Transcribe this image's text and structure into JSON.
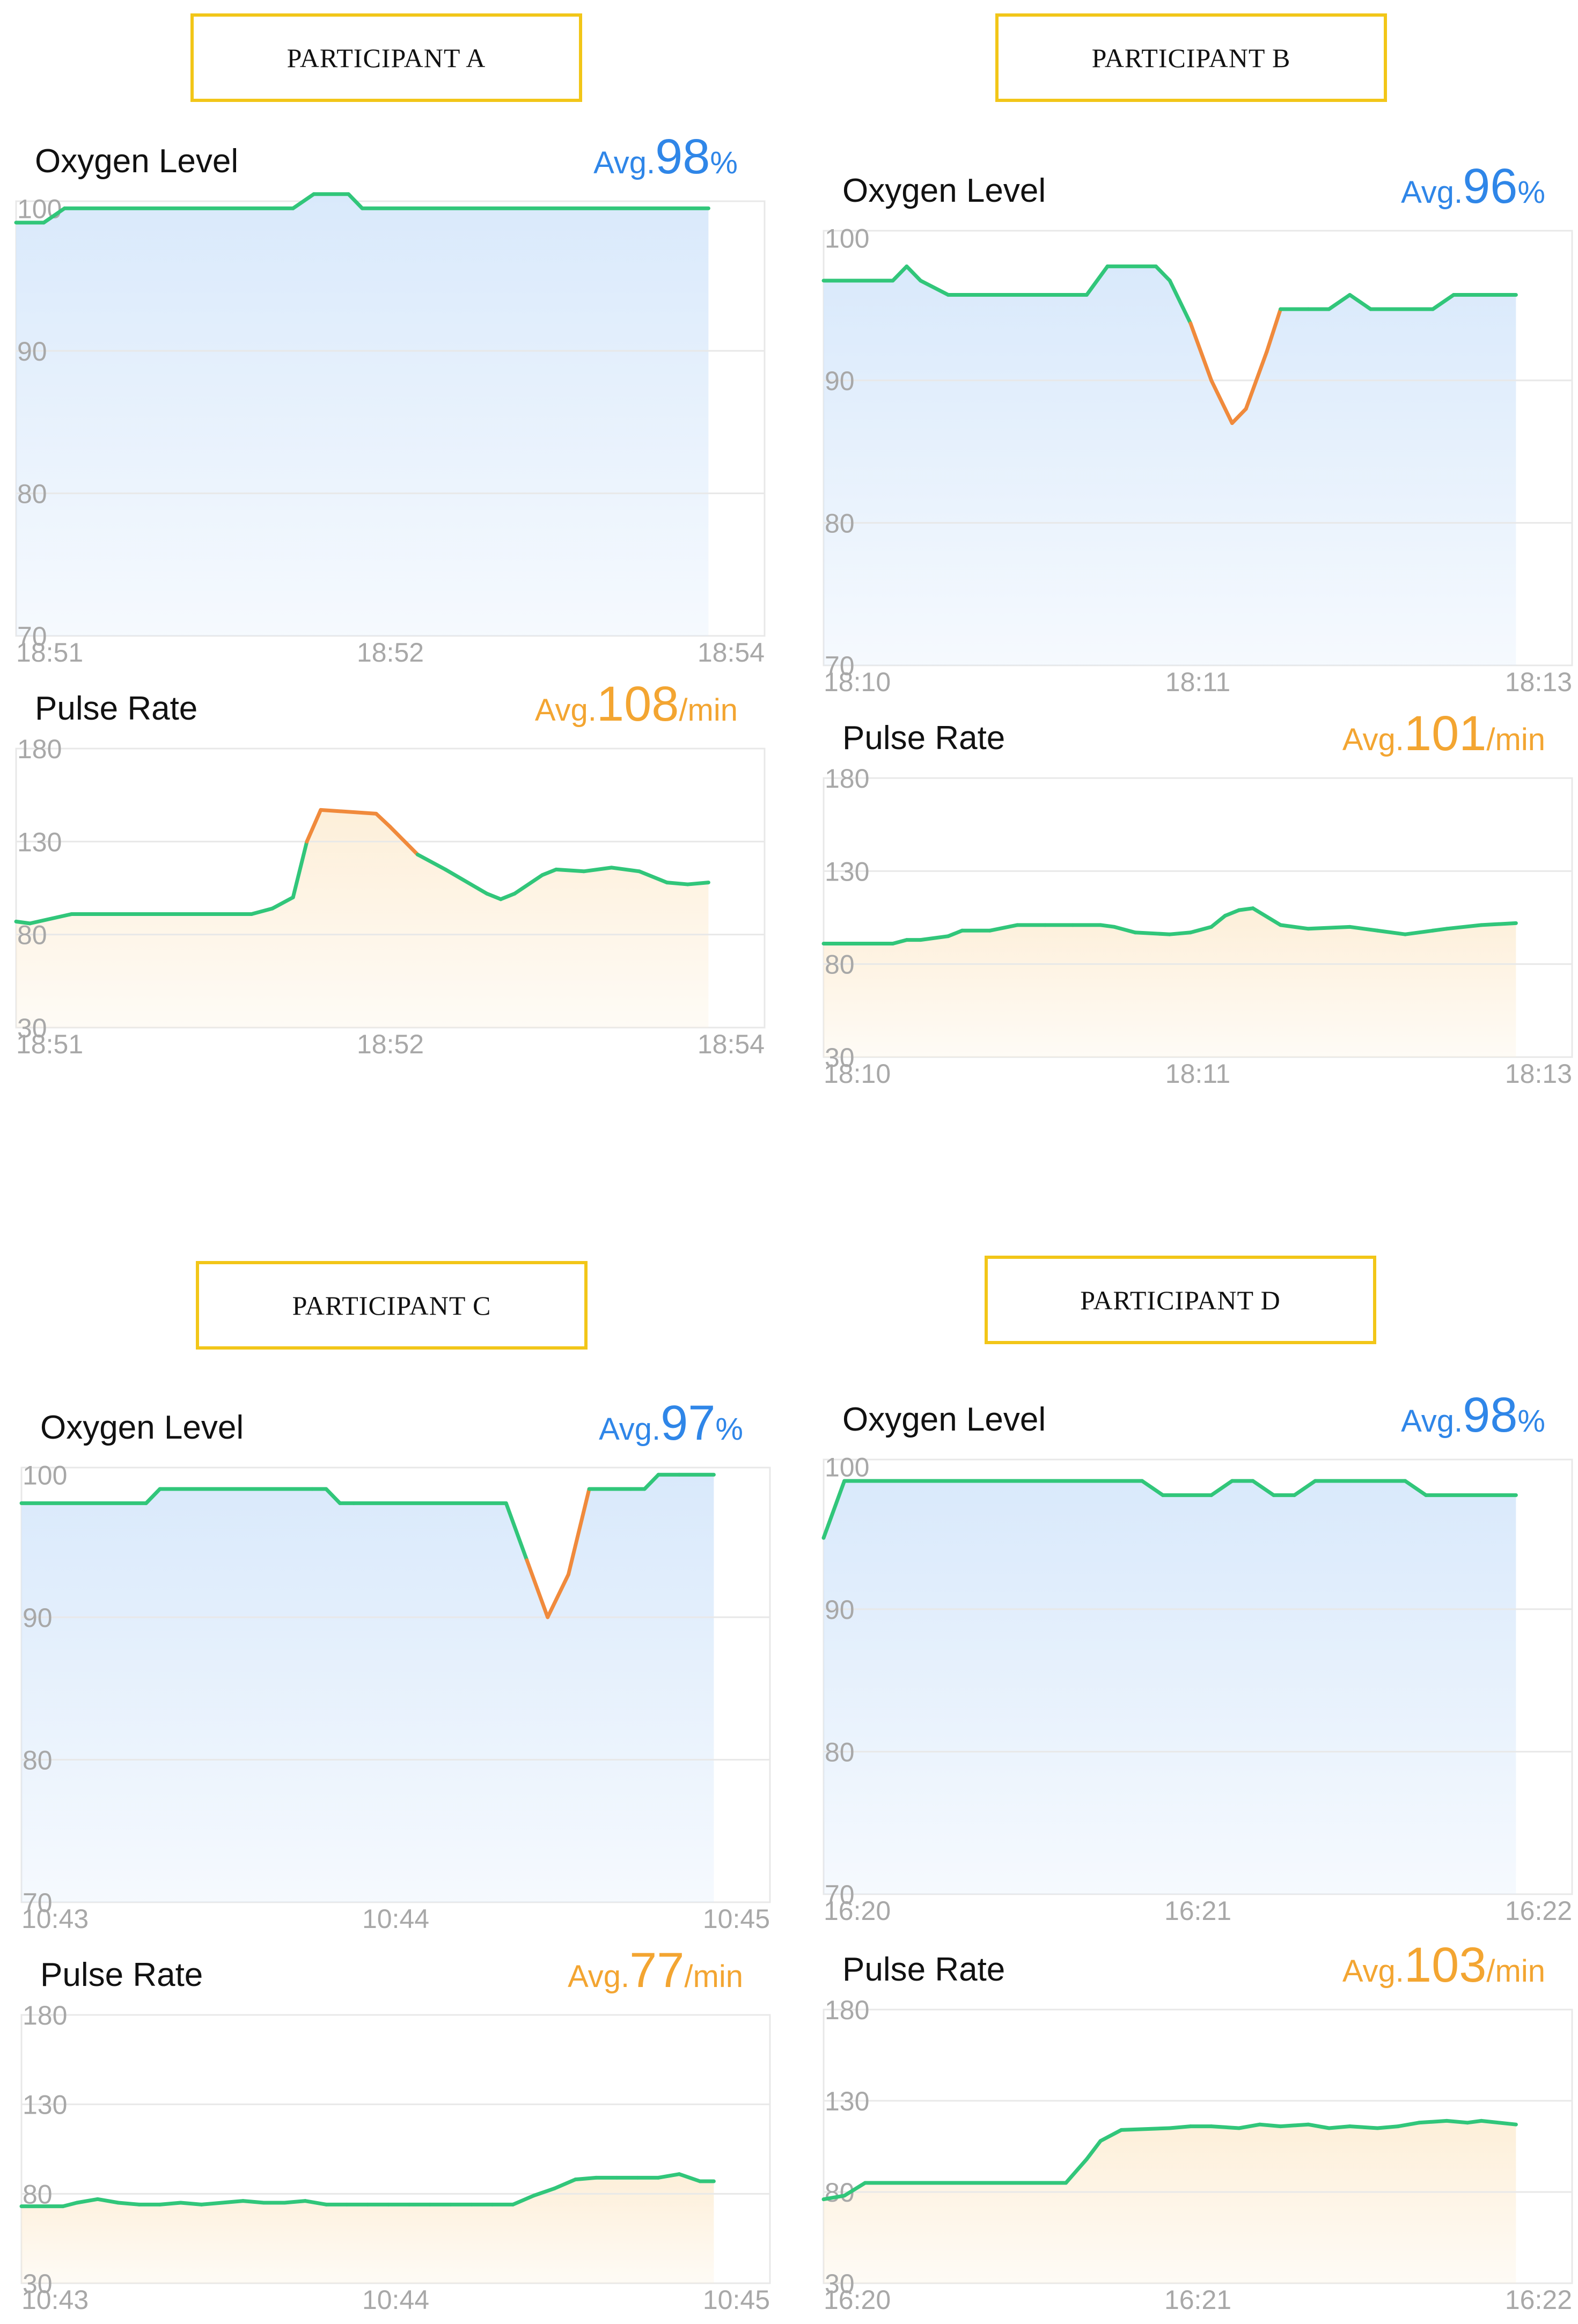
{
  "panels": [
    {
      "label": "PARTICIPANT A",
      "oxygen": {
        "title": "Oxygen Level",
        "avg_prefix": "Avg.",
        "avg_value": "98",
        "avg_unit": "%",
        "chart_data": {
          "type": "area",
          "yticks": [
            100,
            90,
            80,
            70
          ],
          "ylim": [
            70,
            100.5
          ],
          "xtick_labels": [
            "18:51",
            "18:52",
            "18:54"
          ],
          "x": [
            0,
            0.04,
            0.07,
            0.4,
            0.43,
            0.48,
            0.5,
            1
          ],
          "values": [
            99,
            99,
            100,
            100,
            101,
            101,
            100,
            100
          ],
          "color_low": "#f08a3c"
        }
      },
      "pulse": {
        "title": "Pulse Rate",
        "avg_prefix": "Avg.",
        "avg_value": "108",
        "avg_unit": "/min",
        "chart_data": {
          "type": "area",
          "yticks": [
            180,
            130,
            80,
            30
          ],
          "ylim": [
            30,
            180
          ],
          "xtick_labels": [
            "18:51",
            "18:52",
            "18:54"
          ],
          "x": [
            0,
            0.02,
            0.08,
            0.34,
            0.37,
            0.4,
            0.42,
            0.44,
            0.52,
            0.54,
            0.58,
            0.62,
            0.68,
            0.7,
            0.72,
            0.76,
            0.78,
            0.82,
            0.86,
            0.9,
            0.94,
            0.97,
            1
          ],
          "values": [
            87,
            86,
            91,
            91,
            94,
            100,
            130,
            147,
            145,
            138,
            123,
            115,
            102,
            99,
            102,
            112,
            115,
            114,
            116,
            114,
            108,
            107,
            108
          ],
          "color_high": "#f08a3c",
          "high_threshold": 130
        }
      }
    },
    {
      "label": "PARTICIPANT B",
      "oxygen": {
        "title": "Oxygen Level",
        "avg_prefix": "Avg.",
        "avg_value": "96",
        "avg_unit": "%",
        "chart_data": {
          "type": "area",
          "yticks": [
            100,
            90,
            80,
            70
          ],
          "ylim": [
            70,
            100.5
          ],
          "xtick_labels": [
            "18:10",
            "18:11",
            "18:13"
          ],
          "x": [
            0,
            0.1,
            0.12,
            0.14,
            0.18,
            0.2,
            0.38,
            0.41,
            0.48,
            0.5,
            0.53,
            0.56,
            0.59,
            0.61,
            0.64,
            0.66,
            0.7,
            0.73,
            0.76,
            0.79,
            0.88,
            0.91,
            1
          ],
          "values": [
            97,
            97,
            98,
            97,
            96,
            96,
            96,
            98,
            98,
            97,
            94,
            90,
            87,
            88,
            92,
            95,
            95,
            95,
            96,
            95,
            95,
            96,
            96
          ],
          "color_low": "#f08a3c",
          "low_threshold": 93
        }
      },
      "pulse": {
        "title": "Pulse Rate",
        "avg_prefix": "Avg.",
        "avg_value": "101",
        "avg_unit": "/min",
        "chart_data": {
          "type": "area",
          "yticks": [
            180,
            130,
            80,
            30
          ],
          "ylim": [
            30,
            180
          ],
          "xtick_labels": [
            "18:10",
            "18:11",
            "18:13"
          ],
          "x": [
            0,
            0.1,
            0.12,
            0.14,
            0.18,
            0.2,
            0.24,
            0.28,
            0.32,
            0.36,
            0.4,
            0.42,
            0.45,
            0.5,
            0.53,
            0.56,
            0.58,
            0.6,
            0.62,
            0.66,
            0.7,
            0.76,
            0.8,
            0.84,
            0.88,
            0.9,
            0.95,
            1
          ],
          "values": [
            91,
            91,
            93,
            93,
            95,
            98,
            98,
            101,
            101,
            101,
            101,
            100,
            97,
            96,
            97,
            100,
            106,
            109,
            110,
            101,
            99,
            100,
            98,
            96,
            98,
            99,
            101,
            102
          ],
          "color_high": "#f08a3c",
          "high_threshold": 130
        }
      }
    },
    {
      "label": "PARTICIPANT C",
      "oxygen": {
        "title": "Oxygen Level",
        "avg_prefix": "Avg.",
        "avg_value": "97",
        "avg_unit": "%",
        "chart_data": {
          "type": "area",
          "yticks": [
            100,
            90,
            80,
            70
          ],
          "ylim": [
            70,
            100.5
          ],
          "xtick_labels": [
            "10:43",
            "10:44",
            "10:45"
          ],
          "x": [
            0,
            0.18,
            0.2,
            0.42,
            0.44,
            0.46,
            0.48,
            0.7,
            0.73,
            0.76,
            0.79,
            0.82,
            0.88,
            0.9,
            0.92,
            0.95,
            1
          ],
          "values": [
            98,
            98,
            99,
            99,
            99,
            98,
            98,
            98,
            94,
            90,
            93,
            99,
            99,
            99,
            100,
            100,
            100
          ],
          "color_low": "#f08a3c",
          "low_threshold": 94
        }
      },
      "pulse": {
        "title": "Pulse Rate",
        "avg_prefix": "Avg.",
        "avg_value": "77",
        "avg_unit": "/min",
        "chart_data": {
          "type": "area",
          "yticks": [
            180,
            130,
            80,
            30
          ],
          "ylim": [
            30,
            180
          ],
          "xtick_labels": [
            "10:43",
            "10:44",
            "10:45"
          ],
          "x": [
            0,
            0.06,
            0.08,
            0.11,
            0.14,
            0.17,
            0.2,
            0.23,
            0.26,
            0.29,
            0.32,
            0.35,
            0.38,
            0.41,
            0.44,
            0.47,
            0.5,
            0.53,
            0.56,
            0.59,
            0.62,
            0.65,
            0.68,
            0.71,
            0.74,
            0.77,
            0.8,
            0.83,
            0.86,
            0.89,
            0.92,
            0.95,
            0.98,
            1
          ],
          "values": [
            73,
            73,
            75,
            77,
            75,
            74,
            74,
            75,
            74,
            75,
            76,
            75,
            75,
            76,
            74,
            74,
            74,
            74,
            74,
            74,
            74,
            74,
            74,
            74,
            79,
            83,
            88,
            89,
            89,
            89,
            89,
            91,
            87,
            87
          ],
          "color_high": "#f08a3c",
          "high_threshold": 130
        }
      }
    },
    {
      "label": "PARTICIPANT D",
      "oxygen": {
        "title": "Oxygen Level",
        "avg_prefix": "Avg.",
        "avg_value": "98",
        "avg_unit": "%",
        "chart_data": {
          "type": "area",
          "yticks": [
            100,
            90,
            80,
            70
          ],
          "ylim": [
            70,
            100.5
          ],
          "xtick_labels": [
            "16:20",
            "16:21",
            "16:22"
          ],
          "x": [
            0,
            0.03,
            0.46,
            0.49,
            0.56,
            0.59,
            0.62,
            0.65,
            0.68,
            0.71,
            0.84,
            0.87,
            1
          ],
          "values": [
            95,
            99,
            99,
            98,
            98,
            99,
            99,
            98,
            98,
            99,
            99,
            98,
            98
          ],
          "color_low": "#f08a3c",
          "low_threshold": 93
        }
      },
      "pulse": {
        "title": "Pulse Rate",
        "avg_prefix": "Avg.",
        "avg_value": "103",
        "avg_unit": "/min",
        "chart_data": {
          "type": "area",
          "yticks": [
            180,
            130,
            80,
            30
          ],
          "ylim": [
            30,
            180
          ],
          "xtick_labels": [
            "16:20",
            "16:21",
            "16:22"
          ],
          "x": [
            0,
            0.03,
            0.06,
            0.35,
            0.38,
            0.4,
            0.43,
            0.5,
            0.53,
            0.56,
            0.6,
            0.63,
            0.66,
            0.7,
            0.73,
            0.76,
            0.8,
            0.83,
            0.86,
            0.9,
            0.93,
            0.95,
            1
          ],
          "values": [
            76,
            78,
            85,
            85,
            98,
            108,
            114,
            115,
            116,
            116,
            115,
            117,
            116,
            117,
            115,
            116,
            115,
            116,
            118,
            119,
            118,
            119,
            117
          ],
          "color_high": "#f08a3c",
          "high_threshold": 130
        }
      }
    }
  ],
  "colors": {
    "line": "#31c67a",
    "line_alert": "#f08a3c",
    "oxygen_fill": "#d9e9fb",
    "pulse_fill": "#fdefd9",
    "grid": "#e8e8e8",
    "tick_text": "#a8a8a8",
    "oxygen_avg": "#2f86e8",
    "pulse_avg": "#f3a531",
    "label_border": "#f2c618"
  }
}
